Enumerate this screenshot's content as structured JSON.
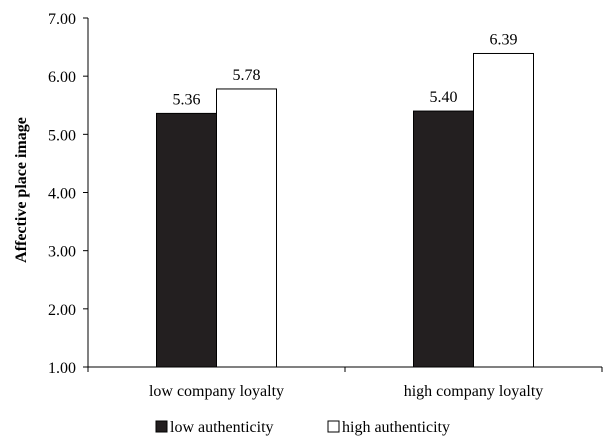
{
  "chart_data": {
    "type": "bar",
    "ylabel": "Affective place image",
    "xlabel": "",
    "ylim": [
      1.0,
      7.0
    ],
    "yticks": [
      "1.00",
      "2.00",
      "3.00",
      "4.00",
      "5.00",
      "6.00",
      "7.00"
    ],
    "categories": [
      "low company loyalty",
      "high company loyalty"
    ],
    "series": [
      {
        "name": "low authenticity",
        "values": [
          5.36,
          5.4
        ],
        "labels": [
          "5.36",
          "5.40"
        ],
        "color": "#231f20"
      },
      {
        "name": "high authenticity",
        "values": [
          5.78,
          6.39
        ],
        "labels": [
          "5.78",
          "6.39"
        ],
        "color": "#ffffff"
      }
    ],
    "legend_position": "bottom",
    "grid": false
  }
}
